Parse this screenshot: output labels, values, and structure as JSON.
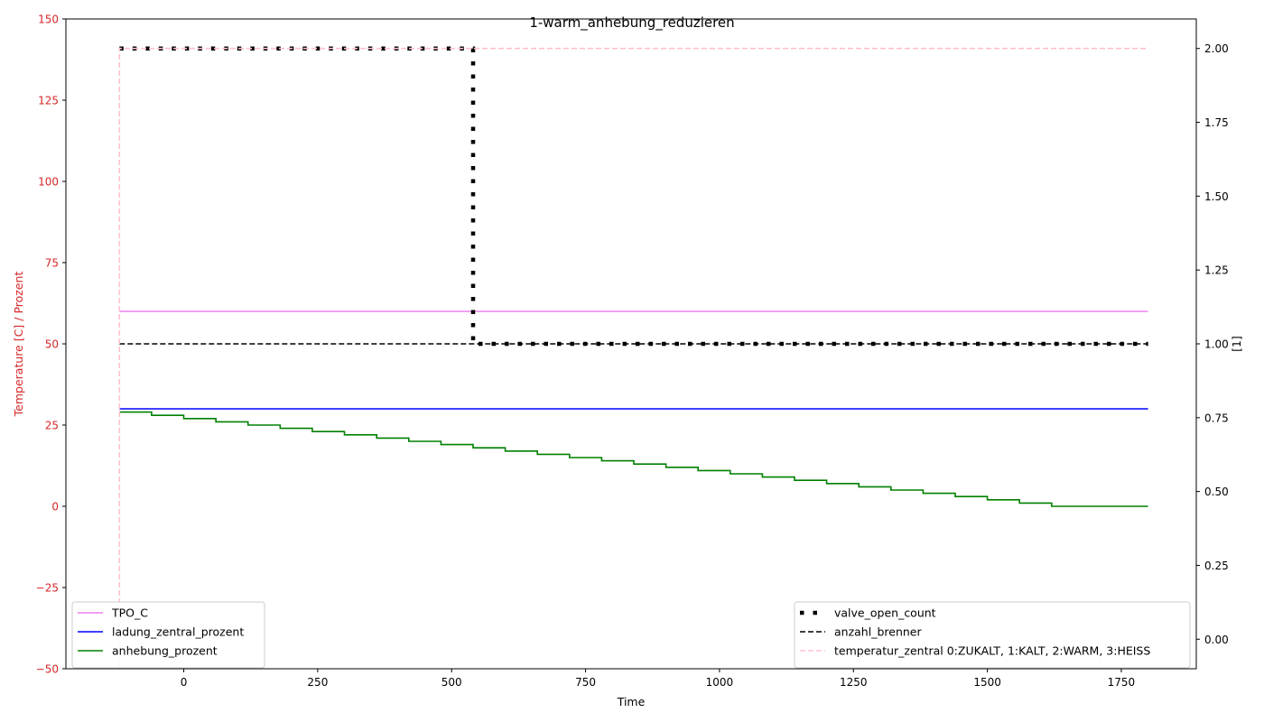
{
  "chart_data": {
    "type": "line",
    "title": "1-warm_anhebung_reduzieren",
    "xlabel": "Time",
    "ylabel_left": "Temperature [C] / Prozent",
    "ylabel_right": "[1]",
    "xlim": [
      -220,
      1890
    ],
    "ylim_left": [
      -50,
      150
    ],
    "ylim_right": [
      -0.1,
      2.1
    ],
    "x_ticks": [
      0,
      250,
      500,
      750,
      1000,
      1250,
      1500,
      1750
    ],
    "y_left_ticks": [
      -50,
      -25,
      0,
      25,
      50,
      75,
      100,
      125,
      150
    ],
    "y_right_ticks": [
      "0.00",
      "0.25",
      "0.50",
      "0.75",
      "1.00",
      "1.25",
      "1.50",
      "1.75",
      "2.00"
    ],
    "grid": false,
    "colors": {
      "left_axis": "#d62728"
    },
    "series_left": [
      {
        "name": "TPO_C",
        "color": "#ee82ee",
        "style": "solid",
        "step": false,
        "x": [
          -120,
          1800
        ],
        "y": [
          60,
          60
        ]
      },
      {
        "name": "ladung_zentral_prozent",
        "color": "#0000ff",
        "style": "solid",
        "step": false,
        "x": [
          -120,
          1800
        ],
        "y": [
          30,
          30
        ]
      },
      {
        "name": "anhebung_prozent",
        "color": "#008000",
        "style": "solid",
        "step": true,
        "x": [
          -120,
          -60,
          0,
          60,
          120,
          180,
          240,
          300,
          360,
          420,
          480,
          540,
          600,
          660,
          720,
          780,
          840,
          900,
          960,
          1020,
          1080,
          1140,
          1200,
          1260,
          1320,
          1380,
          1440,
          1500,
          1560,
          1620,
          1800
        ],
        "y": [
          29,
          28,
          27,
          26,
          25,
          24,
          23,
          22,
          21,
          20,
          19,
          18,
          17,
          16,
          15,
          14,
          13,
          12,
          11,
          10,
          9,
          8,
          7,
          6,
          5,
          4,
          3,
          2,
          1,
          0,
          0
        ]
      }
    ],
    "series_right": [
      {
        "name": "valve_open_count",
        "color": "#000000",
        "style": "dotted-thick",
        "step": true,
        "x": [
          -120,
          540,
          1800
        ],
        "y": [
          2,
          1,
          1
        ]
      },
      {
        "name": "anzahl_brenner",
        "color": "#000000",
        "style": "dashed",
        "step": false,
        "x": [
          -120,
          1800
        ],
        "y": [
          1,
          1
        ]
      },
      {
        "name": "temperatur_zentral 0:ZUKALT, 1:KALT, 2:WARM, 3:HEISS",
        "color": "#ffc0cb",
        "style": "dashed",
        "step": true,
        "x": [
          -120,
          -120,
          1800
        ],
        "y": [
          -0.1,
          2,
          2
        ]
      }
    ],
    "legend_left_position": "lower-left",
    "legend_right_position": "lower-right"
  }
}
